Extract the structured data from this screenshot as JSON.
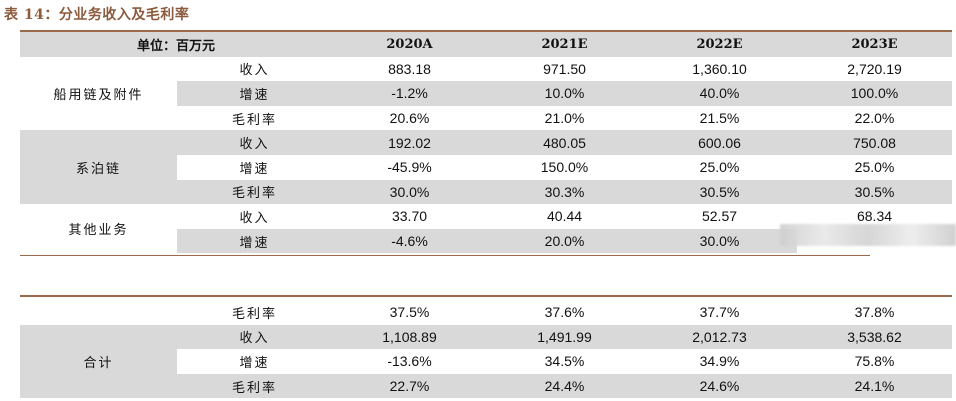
{
  "caption": "表 14：分业务收入及毛利率",
  "header": {
    "unit_label": "单位：百万元",
    "years": [
      "2020A",
      "2021E",
      "2022E",
      "2023E"
    ]
  },
  "segments": [
    {
      "name": "船用链及附件",
      "rows": [
        {
          "metric": "收入",
          "values": [
            "883.18",
            "971.50",
            "1,360.10",
            "2,720.19"
          ]
        },
        {
          "metric": "增速",
          "values": [
            "-1.2%",
            "10.0%",
            "40.0%",
            "100.0%"
          ]
        },
        {
          "metric": "毛利率",
          "values": [
            "20.6%",
            "21.0%",
            "21.5%",
            "22.0%"
          ]
        }
      ]
    },
    {
      "name": "系泊链",
      "rows": [
        {
          "metric": "收入",
          "values": [
            "192.02",
            "480.05",
            "600.06",
            "750.08"
          ]
        },
        {
          "metric": "增速",
          "values": [
            "-45.9%",
            "150.0%",
            "25.0%",
            "25.0%"
          ]
        },
        {
          "metric": "毛利率",
          "values": [
            "30.0%",
            "30.3%",
            "30.5%",
            "30.5%"
          ]
        }
      ]
    },
    {
      "name": "其他业务",
      "rows": [
        {
          "metric": "收入",
          "values": [
            "33.70",
            "40.44",
            "52.57",
            "68.34"
          ]
        },
        {
          "metric": "增速",
          "values": [
            "-4.6%",
            "20.0%",
            "30.0%",
            ""
          ]
        }
      ]
    }
  ],
  "continuation": {
    "rows": [
      {
        "metric": "毛利率",
        "values": [
          "37.5%",
          "37.6%",
          "37.7%",
          "37.8%"
        ]
      }
    ]
  },
  "total": {
    "name": "合计",
    "rows": [
      {
        "metric": "收入",
        "values": [
          "1,108.89",
          "1,491.99",
          "2,012.73",
          "3,538.62"
        ]
      },
      {
        "metric": "增速",
        "values": [
          "-13.6%",
          "34.5%",
          "34.9%",
          "75.8%"
        ]
      },
      {
        "metric": "毛利率",
        "values": [
          "22.7%",
          "24.4%",
          "24.6%",
          "24.1%"
        ]
      }
    ]
  }
}
